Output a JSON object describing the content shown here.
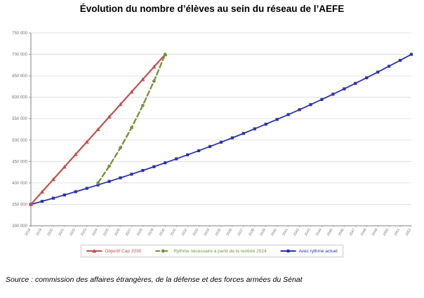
{
  "page": {
    "title": "Évolution du nombre d’élèves au sein du réseau de l’AEFE",
    "source": "Source : commission des affaires étrangères, de la défense et des forces armées du Sénat"
  },
  "chart_data": {
    "type": "line",
    "title": "Évolution du nombre d’élèves au sein du réseau de l’AEFE",
    "xlabel": "",
    "ylabel": "",
    "ylim": [
      300000,
      750000
    ],
    "ytick_step": 50000,
    "grid": "horizontal",
    "legend_position": "bottom",
    "axis_text_color": "#737373",
    "gridline_color": "#D9D9D9",
    "axis_line_color": "#808080",
    "categories": [
      "2018",
      "2019",
      "2020",
      "2021",
      "2022",
      "2023",
      "2024",
      "2025",
      "2026",
      "2027",
      "2028",
      "2029",
      "2030",
      "2031",
      "2032",
      "2033",
      "2034",
      "2035",
      "2036",
      "2037",
      "2038",
      "2039",
      "2040",
      "2041",
      "2042",
      "2043",
      "2044",
      "2045",
      "2046",
      "2047",
      "2048",
      "2049",
      "2050",
      "2051",
      "2052"
    ],
    "series": [
      {
        "id": "objectif-cap-2030",
        "name": "Objectif Cap 2030",
        "color": "#C0504D",
        "marker": "triangle",
        "dash": null,
        "width": 2.2,
        "start_year": "2018",
        "values": [
          350000,
          379200,
          408300,
          437500,
          466700,
          495800,
          525000,
          554200,
          583300,
          612500,
          641700,
          670800,
          700000
        ]
      },
      {
        "id": "rythme-necessaire-rentree-2024",
        "name": "Rythme nécessaire à partir de la rentrée 2024",
        "color": "#77933C",
        "marker": "circle",
        "dash": "7 4",
        "width": 2.4,
        "start_year": "2024",
        "values": [
          400000,
          439100,
          482000,
          529100,
          580800,
          637600,
          700000
        ]
      },
      {
        "id": "avec-rythme-actuel",
        "name": "Avec rythme actuel",
        "color": "#2B34AC",
        "marker": "square",
        "dash": null,
        "width": 1.8,
        "start_year": "2018",
        "values": [
          350000,
          357000,
          364400,
          371900,
          379600,
          387400,
          395400,
          403600,
          411900,
          420400,
          429100,
          437900,
          447000,
          456200,
          465600,
          475200,
          485000,
          495000,
          505200,
          515600,
          526300,
          537100,
          548200,
          559500,
          571000,
          582800,
          594800,
          607100,
          619600,
          632400,
          645400,
          658700,
          672300,
          686100,
          700000
        ]
      }
    ]
  }
}
